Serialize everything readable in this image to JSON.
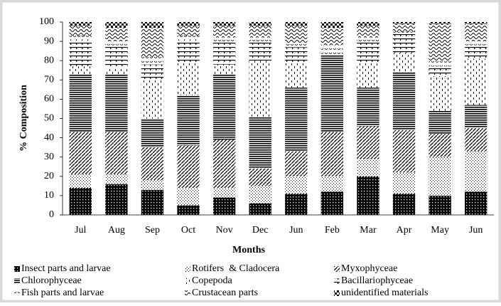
{
  "chart_data": {
    "type": "stacked_bar",
    "y_label": "% Composition",
    "x_label": "Months",
    "categories": [
      "Jul",
      "Aug",
      "Sep",
      "Oct",
      "Nov",
      "Dec",
      "Jun",
      "Feb",
      "Mar",
      "Apr",
      "May",
      "Jun"
    ],
    "ylim": [
      0,
      100
    ],
    "yticks": [
      0,
      10,
      20,
      30,
      40,
      50,
      60,
      70,
      80,
      90,
      100
    ],
    "grid": false,
    "legend": "bottom",
    "series": [
      {
        "name": "Insect parts and larvae",
        "values": [
          14,
          16,
          13,
          5,
          9,
          6,
          11,
          12,
          20,
          11,
          10,
          12
        ]
      },
      {
        "name": "Rotifers  & Cladocera",
        "values": [
          7,
          5,
          5,
          9,
          5,
          9,
          9,
          8,
          9,
          11,
          20,
          21
        ]
      },
      {
        "name": "Myxophyceae",
        "values": [
          22,
          22,
          17,
          22,
          25,
          9,
          13,
          23,
          17,
          22,
          12,
          12
        ]
      },
      {
        "name": "Chlorophyceae",
        "values": [
          30,
          30,
          15,
          26,
          34,
          27,
          33,
          40,
          20,
          30,
          12,
          12
        ]
      },
      {
        "name": "Copepoda",
        "values": [
          4,
          3,
          20,
          17,
          5,
          29,
          13,
          0,
          13,
          10,
          18,
          24
        ]
      },
      {
        "name": "Bacillariophyceae",
        "values": [
          14,
          12,
          8,
          12,
          12,
          10,
          8,
          0,
          11,
          10,
          5,
          7
        ]
      },
      {
        "name": "Fish parts and larvae",
        "values": [
          2,
          2,
          4,
          2,
          2,
          2,
          2,
          5,
          2,
          1,
          3,
          2
        ]
      },
      {
        "name": "Crustacean parts",
        "values": [
          5,
          7,
          15,
          5,
          6,
          6,
          9,
          9,
          6,
          4,
          19,
          9
        ]
      },
      {
        "name": "unidentified materials",
        "values": [
          2,
          3,
          3,
          2,
          2,
          2,
          2,
          3,
          2,
          1,
          1,
          1
        ]
      }
    ]
  }
}
